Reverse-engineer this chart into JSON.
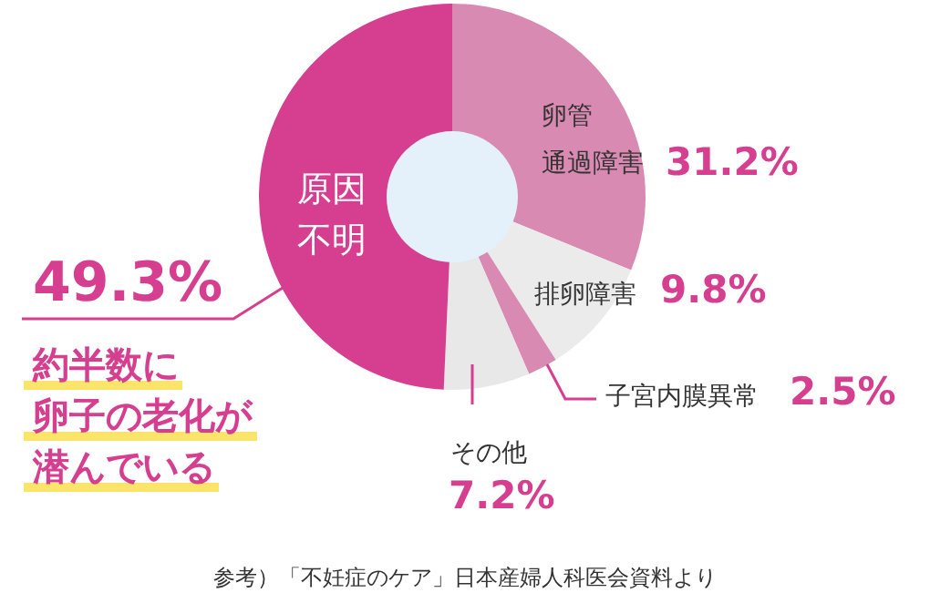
{
  "chart_data": {
    "type": "donut",
    "categories": [
      "卵管通過障害",
      "排卵障害",
      "子宮内膜異常",
      "その他",
      "原因不明"
    ],
    "values": [
      31.2,
      9.8,
      2.5,
      7.2,
      49.3
    ],
    "value_labels": [
      "31.2%",
      "9.8%",
      "2.5%",
      "7.2%",
      "49.3%"
    ],
    "colors": [
      "#d98ab3",
      "#ebebeb",
      "#d98ab3",
      "#e8e8e8",
      "#d63f8f"
    ],
    "annotations": [
      "約半数に卵子の老化が潜んでいる",
      "参考）「不妊症のケア」日本産婦人科医会資料より"
    ]
  }
}
